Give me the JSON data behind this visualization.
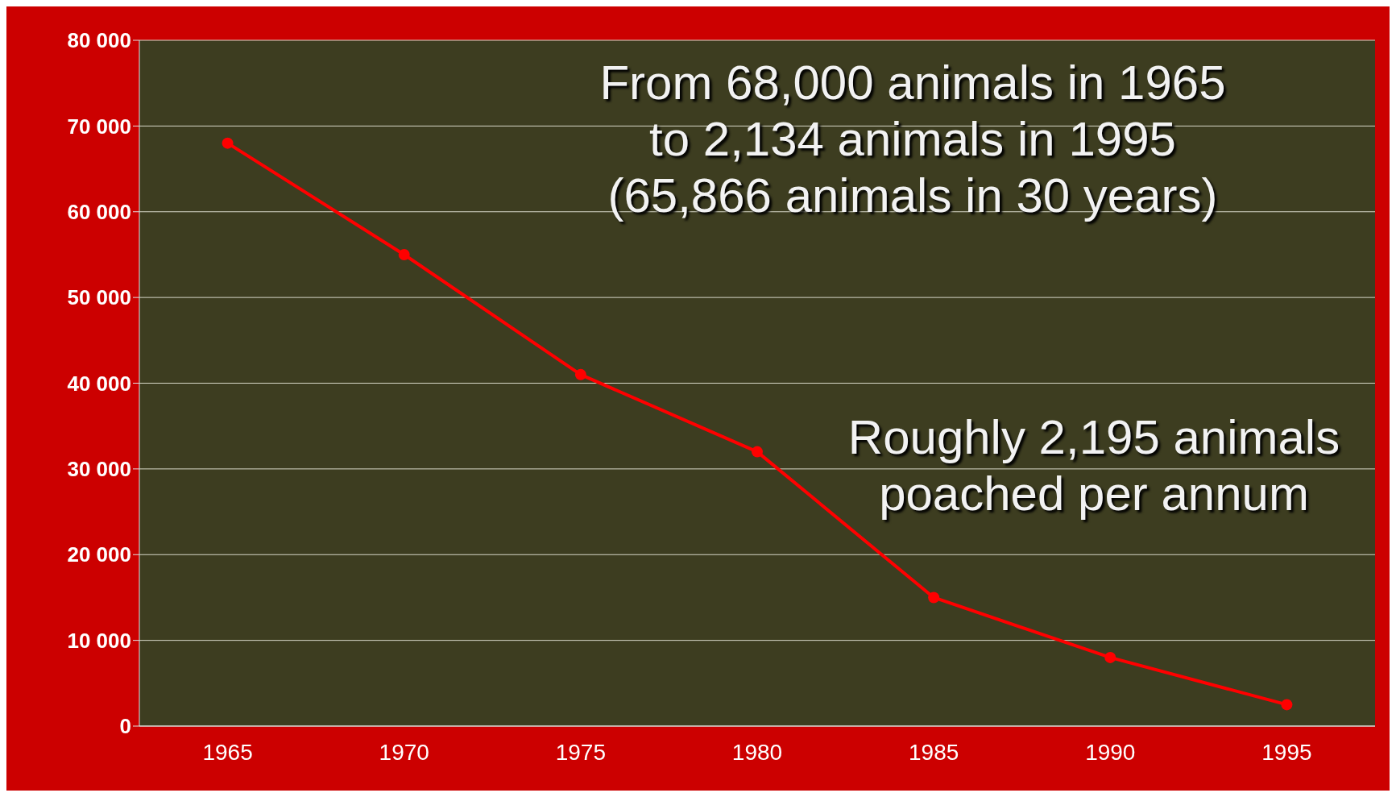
{
  "chart_data": {
    "type": "line",
    "categories": [
      "1965",
      "1970",
      "1975",
      "1980",
      "1985",
      "1990",
      "1995"
    ],
    "series": [
      {
        "color": "#ff0000",
        "values": [
          68000,
          55000,
          41000,
          32000,
          15000,
          8000,
          2500
        ]
      }
    ],
    "ylim": [
      0,
      80000
    ],
    "yticks": [
      {
        "value": 0,
        "label": "0"
      },
      {
        "value": 10000,
        "label": "10 000"
      },
      {
        "value": 20000,
        "label": "20 000"
      },
      {
        "value": 30000,
        "label": "30 000"
      },
      {
        "value": 40000,
        "label": "40 000"
      },
      {
        "value": 50000,
        "label": "50 000"
      },
      {
        "value": 60000,
        "label": "60 000"
      },
      {
        "value": 70000,
        "label": "70 000"
      },
      {
        "value": 80000,
        "label": "80 000"
      }
    ],
    "grid": "y",
    "marker": "circle",
    "line_style": "solid",
    "annotations": [
      "From 68,000 animals in 1965\nto 2,134 animals in 1995\n(65,866 animals in 30 years)",
      "Roughly 2,195 animals\npoached per annum"
    ]
  }
}
